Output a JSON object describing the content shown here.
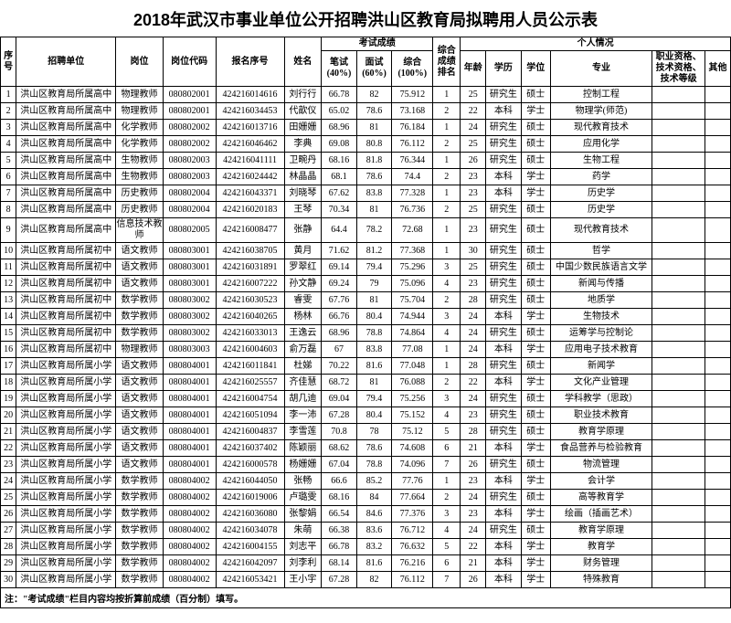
{
  "title": "2018年武汉市事业单位公开招聘洪山区教育局拟聘用人员公示表",
  "headers": {
    "seq": "序号",
    "unit": "招聘单位",
    "post": "岗位",
    "postCode": "岗位代码",
    "regNo": "报名序号",
    "name": "姓名",
    "examGroup": "考试成绩",
    "written": "笔试(40%)",
    "interview": "面试(60%)",
    "total": "综合(100%)",
    "rank": "综合成绩排名",
    "personalGroup": "个人情况",
    "age": "年龄",
    "edu": "学历",
    "degree": "学位",
    "major": "专业",
    "cert": "职业资格、技术资格、技术等级",
    "other": "其他"
  },
  "colWidths": {
    "seq": 16,
    "unit": 102,
    "post": 48,
    "postCode": 54,
    "regNo": 70,
    "name": 38,
    "written": 36,
    "interview": 36,
    "total": 42,
    "rank": 28,
    "age": 26,
    "edu": 36,
    "degree": 30,
    "major": 104,
    "cert": 54,
    "other": 26
  },
  "note": "注：\"考试成绩\"栏目内容均按折算前成绩（百分制）填写。",
  "rows": [
    {
      "seq": "1",
      "unit": "洪山区教育局所属高中",
      "post": "物理教师",
      "postCode": "080802001",
      "regNo": "424216014616",
      "name": "刘行行",
      "written": "66.78",
      "interview": "82",
      "total": "75.912",
      "rank": "1",
      "age": "25",
      "edu": "研究生",
      "degree": "硕士",
      "major": "控制工程",
      "cert": "",
      "other": ""
    },
    {
      "seq": "2",
      "unit": "洪山区教育局所属高中",
      "post": "物理教师",
      "postCode": "080802001",
      "regNo": "424216034453",
      "name": "代歆仪",
      "written": "65.02",
      "interview": "78.6",
      "total": "73.168",
      "rank": "2",
      "age": "22",
      "edu": "本科",
      "degree": "学士",
      "major": "物理学(师范)",
      "cert": "",
      "other": ""
    },
    {
      "seq": "3",
      "unit": "洪山区教育局所属高中",
      "post": "化学教师",
      "postCode": "080802002",
      "regNo": "424216013716",
      "name": "田姗姗",
      "written": "68.96",
      "interview": "81",
      "total": "76.184",
      "rank": "1",
      "age": "24",
      "edu": "研究生",
      "degree": "硕士",
      "major": "现代教育技术",
      "cert": "",
      "other": ""
    },
    {
      "seq": "4",
      "unit": "洪山区教育局所属高中",
      "post": "化学教师",
      "postCode": "080802002",
      "regNo": "424216046462",
      "name": "李典",
      "written": "69.08",
      "interview": "80.8",
      "total": "76.112",
      "rank": "2",
      "age": "25",
      "edu": "研究生",
      "degree": "硕士",
      "major": "应用化学",
      "cert": "",
      "other": ""
    },
    {
      "seq": "5",
      "unit": "洪山区教育局所属高中",
      "post": "生物教师",
      "postCode": "080802003",
      "regNo": "424216041111",
      "name": "卫畹丹",
      "written": "68.16",
      "interview": "81.8",
      "total": "76.344",
      "rank": "1",
      "age": "26",
      "edu": "研究生",
      "degree": "硕士",
      "major": "生物工程",
      "cert": "",
      "other": ""
    },
    {
      "seq": "6",
      "unit": "洪山区教育局所属高中",
      "post": "生物教师",
      "postCode": "080802003",
      "regNo": "424216024442",
      "name": "林晶晶",
      "written": "68.1",
      "interview": "78.6",
      "total": "74.4",
      "rank": "2",
      "age": "23",
      "edu": "本科",
      "degree": "学士",
      "major": "药学",
      "cert": "",
      "other": ""
    },
    {
      "seq": "7",
      "unit": "洪山区教育局所属高中",
      "post": "历史教师",
      "postCode": "080802004",
      "regNo": "424216043371",
      "name": "刘晓琴",
      "written": "67.62",
      "interview": "83.8",
      "total": "77.328",
      "rank": "1",
      "age": "23",
      "edu": "本科",
      "degree": "学士",
      "major": "历史学",
      "cert": "",
      "other": ""
    },
    {
      "seq": "8",
      "unit": "洪山区教育局所属高中",
      "post": "历史教师",
      "postCode": "080802004",
      "regNo": "424216020183",
      "name": "王琴",
      "written": "70.34",
      "interview": "81",
      "total": "76.736",
      "rank": "2",
      "age": "25",
      "edu": "研究生",
      "degree": "硕士",
      "major": "历史学",
      "cert": "",
      "other": ""
    },
    {
      "seq": "9",
      "unit": "洪山区教育局所属高中",
      "post": "信息技术教师",
      "postCode": "080802005",
      "regNo": "424216008477",
      "name": "张静",
      "written": "64.4",
      "interview": "78.2",
      "total": "72.68",
      "rank": "1",
      "age": "23",
      "edu": "研究生",
      "degree": "硕士",
      "major": "现代教育技术",
      "cert": "",
      "other": ""
    },
    {
      "seq": "10",
      "unit": "洪山区教育局所属初中",
      "post": "语文教师",
      "postCode": "080803001",
      "regNo": "424216038705",
      "name": "黄月",
      "written": "71.62",
      "interview": "81.2",
      "total": "77.368",
      "rank": "1",
      "age": "30",
      "edu": "研究生",
      "degree": "硕士",
      "major": "哲学",
      "cert": "",
      "other": ""
    },
    {
      "seq": "11",
      "unit": "洪山区教育局所属初中",
      "post": "语文教师",
      "postCode": "080803001",
      "regNo": "424216031891",
      "name": "罗翠红",
      "written": "69.14",
      "interview": "79.4",
      "total": "75.296",
      "rank": "3",
      "age": "25",
      "edu": "研究生",
      "degree": "硕士",
      "major": "中国少数民族语言文学",
      "cert": "",
      "other": ""
    },
    {
      "seq": "12",
      "unit": "洪山区教育局所属初中",
      "post": "语文教师",
      "postCode": "080803001",
      "regNo": "424216007222",
      "name": "孙文静",
      "written": "69.24",
      "interview": "79",
      "total": "75.096",
      "rank": "4",
      "age": "23",
      "edu": "研究生",
      "degree": "硕士",
      "major": "新闻与传播",
      "cert": "",
      "other": ""
    },
    {
      "seq": "13",
      "unit": "洪山区教育局所属初中",
      "post": "数学教师",
      "postCode": "080803002",
      "regNo": "424216030523",
      "name": "睿雯",
      "written": "67.76",
      "interview": "81",
      "total": "75.704",
      "rank": "2",
      "age": "28",
      "edu": "研究生",
      "degree": "硕士",
      "major": "地质学",
      "cert": "",
      "other": ""
    },
    {
      "seq": "14",
      "unit": "洪山区教育局所属初中",
      "post": "数学教师",
      "postCode": "080803002",
      "regNo": "424216040265",
      "name": "杨林",
      "written": "66.76",
      "interview": "80.4",
      "total": "74.944",
      "rank": "3",
      "age": "24",
      "edu": "本科",
      "degree": "学士",
      "major": "生物技术",
      "cert": "",
      "other": ""
    },
    {
      "seq": "15",
      "unit": "洪山区教育局所属初中",
      "post": "数学教师",
      "postCode": "080803002",
      "regNo": "424216033013",
      "name": "王逸云",
      "written": "68.96",
      "interview": "78.8",
      "total": "74.864",
      "rank": "4",
      "age": "24",
      "edu": "研究生",
      "degree": "硕士",
      "major": "运筹学与控制论",
      "cert": "",
      "other": ""
    },
    {
      "seq": "16",
      "unit": "洪山区教育局所属初中",
      "post": "物理教师",
      "postCode": "080803003",
      "regNo": "424216004603",
      "name": "俞万磊",
      "written": "67",
      "interview": "83.8",
      "total": "77.08",
      "rank": "1",
      "age": "24",
      "edu": "本科",
      "degree": "学士",
      "major": "应用电子技术教育",
      "cert": "",
      "other": ""
    },
    {
      "seq": "17",
      "unit": "洪山区教育局所属小学",
      "post": "语文教师",
      "postCode": "080804001",
      "regNo": "424216011841",
      "name": "杜娣",
      "written": "70.22",
      "interview": "81.6",
      "total": "77.048",
      "rank": "1",
      "age": "28",
      "edu": "研究生",
      "degree": "硕士",
      "major": "新闻学",
      "cert": "",
      "other": ""
    },
    {
      "seq": "18",
      "unit": "洪山区教育局所属小学",
      "post": "语文教师",
      "postCode": "080804001",
      "regNo": "424216025557",
      "name": "齐佳慧",
      "written": "68.72",
      "interview": "81",
      "total": "76.088",
      "rank": "2",
      "age": "22",
      "edu": "本科",
      "degree": "学士",
      "major": "文化产业管理",
      "cert": "",
      "other": ""
    },
    {
      "seq": "19",
      "unit": "洪山区教育局所属小学",
      "post": "语文教师",
      "postCode": "080804001",
      "regNo": "424216004754",
      "name": "胡几迪",
      "written": "69.04",
      "interview": "79.4",
      "total": "75.256",
      "rank": "3",
      "age": "24",
      "edu": "研究生",
      "degree": "硕士",
      "major": "学科教学（思政）",
      "cert": "",
      "other": ""
    },
    {
      "seq": "20",
      "unit": "洪山区教育局所属小学",
      "post": "语文教师",
      "postCode": "080804001",
      "regNo": "424216051094",
      "name": "李一沛",
      "written": "67.28",
      "interview": "80.4",
      "total": "75.152",
      "rank": "4",
      "age": "23",
      "edu": "研究生",
      "degree": "硕士",
      "major": "职业技术教育",
      "cert": "",
      "other": ""
    },
    {
      "seq": "21",
      "unit": "洪山区教育局所属小学",
      "post": "语文教师",
      "postCode": "080804001",
      "regNo": "424216004837",
      "name": "李雪莲",
      "written": "70.8",
      "interview": "78",
      "total": "75.12",
      "rank": "5",
      "age": "28",
      "edu": "研究生",
      "degree": "硕士",
      "major": "教育学原理",
      "cert": "",
      "other": ""
    },
    {
      "seq": "22",
      "unit": "洪山区教育局所属小学",
      "post": "语文教师",
      "postCode": "080804001",
      "regNo": "424216037402",
      "name": "陈颖丽",
      "written": "68.62",
      "interview": "78.6",
      "total": "74.608",
      "rank": "6",
      "age": "21",
      "edu": "本科",
      "degree": "学士",
      "major": "食品营养与检验教育",
      "cert": "",
      "other": ""
    },
    {
      "seq": "23",
      "unit": "洪山区教育局所属小学",
      "post": "语文教师",
      "postCode": "080804001",
      "regNo": "424216000578",
      "name": "杨姗姗",
      "written": "67.04",
      "interview": "78.8",
      "total": "74.096",
      "rank": "7",
      "age": "26",
      "edu": "研究生",
      "degree": "硕士",
      "major": "物流管理",
      "cert": "",
      "other": ""
    },
    {
      "seq": "24",
      "unit": "洪山区教育局所属小学",
      "post": "数学教师",
      "postCode": "080804002",
      "regNo": "424216044050",
      "name": "张畅",
      "written": "66.6",
      "interview": "85.2",
      "total": "77.76",
      "rank": "1",
      "age": "23",
      "edu": "本科",
      "degree": "学士",
      "major": "会计学",
      "cert": "",
      "other": ""
    },
    {
      "seq": "25",
      "unit": "洪山区教育局所属小学",
      "post": "数学教师",
      "postCode": "080804002",
      "regNo": "424216019006",
      "name": "卢璐雯",
      "written": "68.16",
      "interview": "84",
      "total": "77.664",
      "rank": "2",
      "age": "24",
      "edu": "研究生",
      "degree": "硕士",
      "major": "高等教育学",
      "cert": "",
      "other": ""
    },
    {
      "seq": "26",
      "unit": "洪山区教育局所属小学",
      "post": "数学教师",
      "postCode": "080804002",
      "regNo": "424216036080",
      "name": "张黎娟",
      "written": "66.54",
      "interview": "84.6",
      "total": "77.376",
      "rank": "3",
      "age": "23",
      "edu": "本科",
      "degree": "学士",
      "major": "绘画（插画艺术）",
      "cert": "",
      "other": ""
    },
    {
      "seq": "27",
      "unit": "洪山区教育局所属小学",
      "post": "数学教师",
      "postCode": "080804002",
      "regNo": "424216034078",
      "name": "朱萌",
      "written": "66.38",
      "interview": "83.6",
      "total": "76.712",
      "rank": "4",
      "age": "24",
      "edu": "研究生",
      "degree": "硕士",
      "major": "教育学原理",
      "cert": "",
      "other": ""
    },
    {
      "seq": "28",
      "unit": "洪山区教育局所属小学",
      "post": "数学教师",
      "postCode": "080804002",
      "regNo": "424216004155",
      "name": "刘志平",
      "written": "66.78",
      "interview": "83.2",
      "total": "76.632",
      "rank": "5",
      "age": "22",
      "edu": "本科",
      "degree": "学士",
      "major": "教育学",
      "cert": "",
      "other": ""
    },
    {
      "seq": "29",
      "unit": "洪山区教育局所属小学",
      "post": "数学教师",
      "postCode": "080804002",
      "regNo": "424216042097",
      "name": "刘李利",
      "written": "68.14",
      "interview": "81.6",
      "total": "76.216",
      "rank": "6",
      "age": "21",
      "edu": "本科",
      "degree": "学士",
      "major": "财务管理",
      "cert": "",
      "other": ""
    },
    {
      "seq": "30",
      "unit": "洪山区教育局所属小学",
      "post": "数学教师",
      "postCode": "080804002",
      "regNo": "424216053421",
      "name": "王小宇",
      "written": "67.28",
      "interview": "82",
      "total": "76.112",
      "rank": "7",
      "age": "26",
      "edu": "本科",
      "degree": "学士",
      "major": "特殊教育",
      "cert": "",
      "other": ""
    }
  ]
}
